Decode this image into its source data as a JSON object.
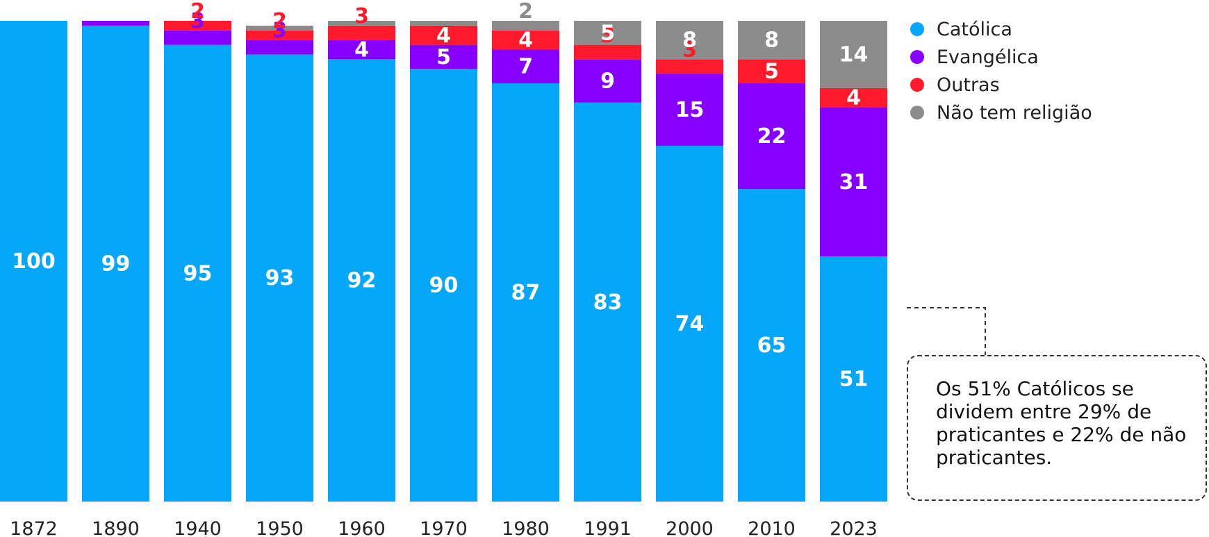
{
  "chart_data": {
    "type": "bar",
    "stacked": true,
    "categories": [
      "1872",
      "1890",
      "1940",
      "1950",
      "1960",
      "1970",
      "1980",
      "1991",
      "2000",
      "2010",
      "2023"
    ],
    "series": [
      {
        "name": "Católica",
        "color": "#06A7FB",
        "label_color": "#ffffff",
        "values": [
          100,
          99,
          95,
          93,
          92,
          90,
          87,
          83,
          74,
          65,
          51
        ],
        "labels": [
          "100",
          "99",
          "95",
          "93",
          "92",
          "90",
          "87",
          "83",
          "74",
          "65",
          "51"
        ]
      },
      {
        "name": "Evangélica",
        "color": "#8700FF",
        "label_color": "#ffffff",
        "values": [
          0,
          1,
          3,
          3,
          4,
          5,
          7,
          9,
          15,
          22,
          31
        ],
        "labels": [
          "",
          "",
          "3",
          "3",
          "4",
          "5",
          "7",
          "9",
          "15",
          "22",
          "31"
        ]
      },
      {
        "name": "Outras",
        "color": "#FF1A2B",
        "label_color": "#ffffff",
        "values": [
          0,
          0,
          2,
          2,
          3,
          4,
          4,
          3,
          3,
          5,
          4
        ],
        "labels": [
          "",
          "",
          "2",
          "2",
          "3",
          "4",
          "4",
          "3",
          "3",
          "5",
          "4"
        ]
      },
      {
        "name": "Não tem religião",
        "color": "#8C8C8C",
        "label_color": "#ffffff",
        "values": [
          0,
          0,
          0,
          1,
          1,
          1,
          2,
          5,
          8,
          8,
          14
        ],
        "labels": [
          "",
          "",
          "",
          "",
          "",
          "",
          "2",
          "5",
          "8",
          "8",
          "14"
        ]
      }
    ],
    "ylim": [
      0,
      100
    ],
    "legend": "top-right",
    "grid": false,
    "annotation": "Os 51% Católicos se dividem entre 29% de praticantes e 22% de não praticantes."
  }
}
